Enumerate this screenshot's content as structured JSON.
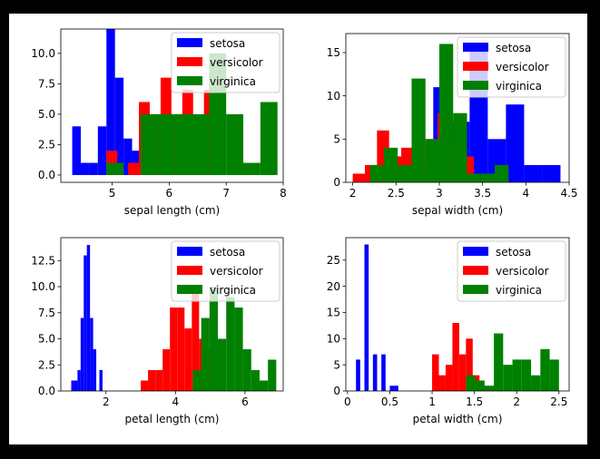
{
  "chart_data": [
    {
      "type": "bar",
      "xlabel": "sepal length (cm)",
      "ylabel": "",
      "xlim": [
        4.1,
        8.0
      ],
      "ylim": [
        -0.6,
        12.0
      ],
      "xticks": [
        5,
        6,
        7,
        8
      ],
      "yticks": [
        0.0,
        2.5,
        5.0,
        7.5,
        10.0
      ],
      "yticks_labels": [
        "0.0",
        "2.5",
        "5.0",
        "7.5",
        "10.0"
      ],
      "legend_position": "top-right",
      "series": [
        {
          "name": "setosa",
          "color": "#0000ff",
          "bins": [
            [
              4.3,
              4.45,
              4
            ],
            [
              4.45,
              4.6,
              1
            ],
            [
              4.6,
              4.75,
              1
            ],
            [
              4.75,
              4.9,
              4
            ],
            [
              4.9,
              5.05,
              12
            ],
            [
              5.05,
              5.2,
              8
            ],
            [
              5.2,
              5.35,
              3
            ],
            [
              5.35,
              5.5,
              2
            ],
            [
              5.5,
              5.65,
              0
            ],
            [
              5.65,
              5.8,
              1
            ]
          ]
        },
        {
          "name": "versicolor",
          "color": "#ff0000",
          "bins": [
            [
              4.9,
              5.09,
              2
            ],
            [
              5.09,
              5.28,
              0
            ],
            [
              5.28,
              5.47,
              1
            ],
            [
              5.47,
              5.66,
              6
            ],
            [
              5.66,
              5.85,
              5
            ],
            [
              5.85,
              6.04,
              8
            ],
            [
              6.04,
              6.23,
              5
            ],
            [
              6.23,
              6.42,
              7
            ],
            [
              6.42,
              6.61,
              4
            ],
            [
              6.61,
              6.8,
              7
            ]
          ]
        },
        {
          "name": "virginica",
          "color": "#008000",
          "bins": [
            [
              4.9,
              5.2,
              1
            ],
            [
              5.2,
              5.5,
              0
            ],
            [
              5.5,
              5.8,
              5
            ],
            [
              5.8,
              6.1,
              5
            ],
            [
              6.1,
              6.4,
              5
            ],
            [
              6.4,
              6.7,
              5
            ],
            [
              6.7,
              7.0,
              10
            ],
            [
              7.0,
              7.3,
              5
            ],
            [
              7.3,
              7.6,
              1
            ],
            [
              7.6,
              7.9,
              6
            ]
          ]
        }
      ]
    },
    {
      "type": "bar",
      "xlabel": "sepal width (cm)",
      "ylabel": "",
      "xlim": [
        1.92,
        4.5
      ],
      "ylim": [
        0,
        17.2
      ],
      "xticks": [
        2.0,
        2.5,
        3.0,
        3.5,
        4.0,
        4.5
      ],
      "yticks": [
        0,
        5,
        10,
        15
      ],
      "legend_position": "top-right",
      "series": [
        {
          "name": "setosa",
          "color": "#0000ff",
          "bins": [
            [
              2.3,
              2.51,
              1
            ],
            [
              2.51,
              2.72,
              0
            ],
            [
              2.72,
              2.93,
              1
            ],
            [
              2.93,
              3.14,
              11
            ],
            [
              3.14,
              3.35,
              7
            ],
            [
              3.35,
              3.56,
              16
            ],
            [
              3.56,
              3.77,
              5
            ],
            [
              3.77,
              3.98,
              9
            ],
            [
              3.98,
              4.19,
              2
            ],
            [
              4.19,
              4.4,
              2
            ]
          ]
        },
        {
          "name": "versicolor",
          "color": "#ff0000",
          "bins": [
            [
              2.0,
              2.14,
              1
            ],
            [
              2.14,
              2.28,
              2
            ],
            [
              2.28,
              2.42,
              6
            ],
            [
              2.42,
              2.56,
              3
            ],
            [
              2.56,
              2.7,
              4
            ],
            [
              2.7,
              2.84,
              3
            ],
            [
              2.84,
              2.98,
              5
            ],
            [
              2.98,
              3.12,
              8
            ],
            [
              3.12,
              3.26,
              4
            ],
            [
              3.26,
              3.4,
              3
            ]
          ]
        },
        {
          "name": "virginica",
          "color": "#008000",
          "bins": [
            [
              2.2,
              2.36,
              2
            ],
            [
              2.36,
              2.52,
              4
            ],
            [
              2.52,
              2.68,
              2
            ],
            [
              2.68,
              2.84,
              12
            ],
            [
              2.84,
              3.0,
              5
            ],
            [
              3.0,
              3.16,
              16
            ],
            [
              3.16,
              3.32,
              8
            ],
            [
              3.32,
              3.48,
              1
            ],
            [
              3.48,
              3.64,
              1
            ],
            [
              3.64,
              3.8,
              2
            ]
          ]
        }
      ]
    },
    {
      "type": "bar",
      "xlabel": "petal length (cm)",
      "ylabel": "",
      "xlim": [
        0.7,
        7.1
      ],
      "ylim": [
        0,
        14.7
      ],
      "xticks": [
        2,
        4,
        6
      ],
      "yticks": [
        0.0,
        2.5,
        5.0,
        7.5,
        10.0,
        12.5
      ],
      "yticks_labels": [
        "0.0",
        "2.5",
        "5.0",
        "7.5",
        "10.0",
        "12.5"
      ],
      "legend_position": "top-right",
      "series": [
        {
          "name": "setosa",
          "color": "#0000ff",
          "bins": [
            [
              1.0,
              1.09,
              1
            ],
            [
              1.09,
              1.18,
              1
            ],
            [
              1.18,
              1.27,
              2
            ],
            [
              1.27,
              1.36,
              7
            ],
            [
              1.36,
              1.45,
              13
            ],
            [
              1.45,
              1.54,
              14
            ],
            [
              1.54,
              1.63,
              7
            ],
            [
              1.63,
              1.72,
              4
            ],
            [
              1.72,
              1.81,
              0
            ],
            [
              1.81,
              1.9,
              2
            ]
          ]
        },
        {
          "name": "versicolor",
          "color": "#ff0000",
          "bins": [
            [
              3.0,
              3.21,
              1
            ],
            [
              3.21,
              3.42,
              2
            ],
            [
              3.42,
              3.63,
              2
            ],
            [
              3.63,
              3.84,
              4
            ],
            [
              3.84,
              4.05,
              8
            ],
            [
              4.05,
              4.26,
              8
            ],
            [
              4.26,
              4.47,
              6
            ],
            [
              4.47,
              4.68,
              10
            ],
            [
              4.68,
              4.89,
              5
            ],
            [
              4.89,
              5.1,
              4
            ]
          ]
        },
        {
          "name": "virginica",
          "color": "#008000",
          "bins": [
            [
              4.5,
              4.74,
              2
            ],
            [
              4.74,
              4.98,
              7
            ],
            [
              4.98,
              5.22,
              10
            ],
            [
              5.22,
              5.46,
              5
            ],
            [
              5.46,
              5.7,
              9
            ],
            [
              5.7,
              5.94,
              8
            ],
            [
              5.94,
              6.18,
              4
            ],
            [
              6.18,
              6.42,
              2
            ],
            [
              6.42,
              6.66,
              1
            ],
            [
              6.66,
              6.9,
              3
            ]
          ]
        }
      ]
    },
    {
      "type": "bar",
      "xlabel": "petal width (cm)",
      "ylabel": "",
      "xlim": [
        -0.02,
        2.62
      ],
      "ylim": [
        0,
        29.3
      ],
      "xticks": [
        0.0,
        0.5,
        1.0,
        1.5,
        2.0,
        2.5
      ],
      "yticks": [
        0,
        5,
        10,
        15,
        20,
        25
      ],
      "legend_position": "top-right",
      "series": [
        {
          "name": "setosa",
          "color": "#0000ff",
          "bins": [
            [
              0.1,
              0.15,
              6
            ],
            [
              0.15,
              0.2,
              0
            ],
            [
              0.2,
              0.25,
              28
            ],
            [
              0.25,
              0.3,
              0
            ],
            [
              0.3,
              0.35,
              7
            ],
            [
              0.35,
              0.4,
              0
            ],
            [
              0.4,
              0.45,
              7
            ],
            [
              0.45,
              0.5,
              0
            ],
            [
              0.5,
              0.55,
              1
            ],
            [
              0.55,
              0.6,
              1
            ]
          ]
        },
        {
          "name": "versicolor",
          "color": "#ff0000",
          "bins": [
            [
              1.0,
              1.08,
              7
            ],
            [
              1.08,
              1.16,
              3
            ],
            [
              1.16,
              1.24,
              5
            ],
            [
              1.24,
              1.32,
              13
            ],
            [
              1.32,
              1.4,
              7
            ],
            [
              1.4,
              1.48,
              10
            ],
            [
              1.48,
              1.56,
              3
            ],
            [
              1.56,
              1.64,
              1
            ],
            [
              1.64,
              1.72,
              0
            ],
            [
              1.72,
              1.8,
              1
            ]
          ]
        },
        {
          "name": "virginica",
          "color": "#008000",
          "bins": [
            [
              1.4,
              1.51,
              3
            ],
            [
              1.51,
              1.62,
              2
            ],
            [
              1.62,
              1.73,
              1
            ],
            [
              1.73,
              1.84,
              11
            ],
            [
              1.84,
              1.95,
              5
            ],
            [
              1.95,
              2.06,
              6
            ],
            [
              2.06,
              2.17,
              6
            ],
            [
              2.17,
              2.28,
              3
            ],
            [
              2.28,
              2.39,
              8
            ],
            [
              2.39,
              2.5,
              6
            ]
          ]
        }
      ]
    }
  ]
}
